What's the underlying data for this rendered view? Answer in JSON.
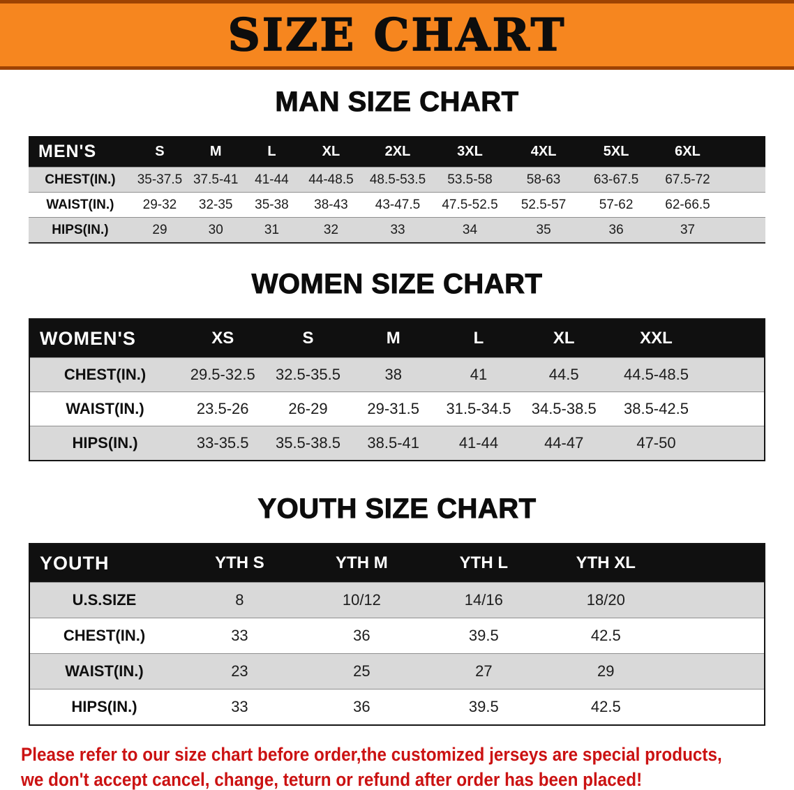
{
  "banner": {
    "title": "SIZE CHART"
  },
  "chart_data": [
    {
      "type": "table",
      "name": "men",
      "title": "MAN SIZE CHART",
      "columns": [
        "MEN'S",
        "S",
        "M",
        "L",
        "XL",
        "2XL",
        "3XL",
        "4XL",
        "5XL",
        "6XL"
      ],
      "rows": [
        [
          "CHEST(IN.)",
          "35-37.5",
          "37.5-41",
          "41-44",
          "44-48.5",
          "48.5-53.5",
          "53.5-58",
          "58-63",
          "63-67.5",
          "67.5-72"
        ],
        [
          "WAIST(IN.)",
          "29-32",
          "32-35",
          "35-38",
          "38-43",
          "43-47.5",
          "47.5-52.5",
          "52.5-57",
          "57-62",
          "62-66.5"
        ],
        [
          "HIPS(IN.)",
          "29",
          "30",
          "31",
          "32",
          "33",
          "34",
          "35",
          "36",
          "37"
        ]
      ]
    },
    {
      "type": "table",
      "name": "women",
      "title": "WOMEN SIZE CHART",
      "columns": [
        "WOMEN'S",
        "XS",
        "S",
        "M",
        "L",
        "XL",
        "XXL"
      ],
      "rows": [
        [
          "CHEST(IN.)",
          "29.5-32.5",
          "32.5-35.5",
          "38",
          "41",
          "44.5",
          "44.5-48.5"
        ],
        [
          "WAIST(IN.)",
          "23.5-26",
          "26-29",
          "29-31.5",
          "31.5-34.5",
          "34.5-38.5",
          "38.5-42.5"
        ],
        [
          "HIPS(IN.)",
          "33-35.5",
          "35.5-38.5",
          "38.5-41",
          "41-44",
          "44-47",
          "47-50"
        ]
      ]
    },
    {
      "type": "table",
      "name": "youth",
      "title": "YOUTH SIZE CHART",
      "columns": [
        "YOUTH",
        "YTH S",
        "YTH M",
        "YTH L",
        "YTH XL"
      ],
      "rows": [
        [
          "U.S.SIZE",
          "8",
          "10/12",
          "14/16",
          "18/20"
        ],
        [
          "CHEST(IN.)",
          "33",
          "36",
          "39.5",
          "42.5"
        ],
        [
          "WAIST(IN.)",
          "23",
          "25",
          "27",
          "29"
        ],
        [
          "HIPS(IN.)",
          "33",
          "36",
          "39.5",
          "42.5"
        ]
      ]
    }
  ],
  "footer": {
    "line1": "Please refer to our size chart before order,the customized jerseys are special products,",
    "line2": "we don't accept cancel, change, teturn or refund after order has been placed!"
  },
  "colors": {
    "banner_orange": "#f6861f",
    "banner_edge": "#9e4302",
    "table_header_black": "#101010",
    "row_gray": "#d9d9d9",
    "row_white": "#ffffff",
    "footer_red": "#cb1212"
  }
}
